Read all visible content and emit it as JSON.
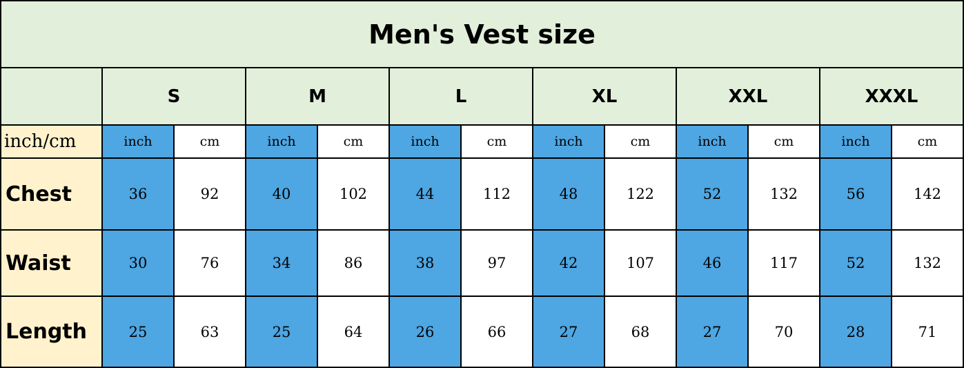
{
  "header": {
    "title": "Men's Vest size"
  },
  "table": {
    "sizes": [
      "S",
      "M",
      "L",
      "XL",
      "XXL",
      "XXXL"
    ],
    "unit_label": "inch/cm",
    "units": [
      "inch",
      "cm",
      "inch",
      "cm",
      "inch",
      "cm",
      "inch",
      "cm",
      "inch",
      "cm",
      "inch",
      "cm"
    ],
    "rows": [
      {
        "label": "Chest",
        "cells": [
          36,
          92,
          40,
          102,
          44,
          112,
          48,
          122,
          52,
          132,
          56,
          142
        ]
      },
      {
        "label": "Waist",
        "cells": [
          30,
          76,
          34,
          86,
          38,
          97,
          42,
          107,
          46,
          117,
          52,
          132
        ]
      },
      {
        "label": "Length",
        "cells": [
          25,
          63,
          25,
          64,
          26,
          66,
          27,
          68,
          27,
          70,
          28,
          71
        ]
      }
    ]
  }
}
